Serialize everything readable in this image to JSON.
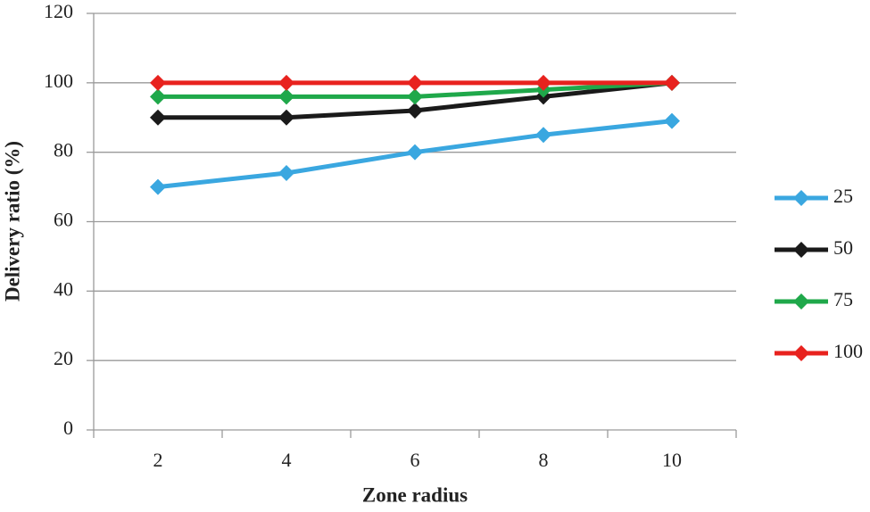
{
  "chart_data": {
    "type": "line",
    "x_label": "Zone radius",
    "y_label": "Delivery ratio (%)",
    "categories": [
      "2",
      "4",
      "6",
      "8",
      "10"
    ],
    "series": [
      {
        "name": "25",
        "color": "#3aa7e0",
        "values": [
          70,
          74,
          80,
          85,
          89
        ]
      },
      {
        "name": "50",
        "color": "#1a1a1a",
        "values": [
          90,
          90,
          92,
          96,
          100
        ]
      },
      {
        "name": "75",
        "color": "#1fa84a",
        "values": [
          96,
          96,
          96,
          98,
          100
        ]
      },
      {
        "name": "100",
        "color": "#e8221e",
        "values": [
          100,
          100,
          100,
          100,
          100
        ]
      }
    ],
    "ylim": [
      0,
      120
    ],
    "yticks": [
      0,
      20,
      40,
      60,
      80,
      100,
      120
    ],
    "grid": true,
    "legend": "right"
  }
}
